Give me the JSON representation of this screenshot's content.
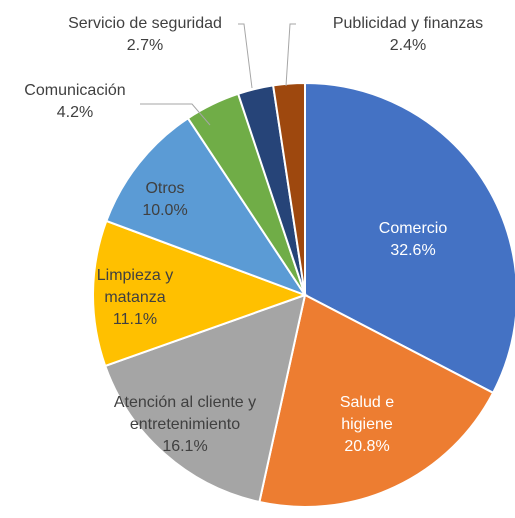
{
  "chart_data": {
    "type": "pie",
    "categories": [
      "Comercio",
      "Salud e higiene",
      "Atención al cliente y entretenimiento",
      "Limpieza y matanza",
      "Otros",
      "Comunicación",
      "Servicio de seguridad",
      "Publicidad y finanzas"
    ],
    "values": [
      32.6,
      20.8,
      16.1,
      11.1,
      10.0,
      4.2,
      2.7,
      2.4
    ],
    "value_labels": [
      "32.6%",
      "20.8%",
      "16.1%",
      "11.1%",
      "10.0%",
      "4.2%",
      "2.7%",
      "2.4%"
    ],
    "colors": [
      "#4472c4",
      "#ed7d31",
      "#a5a5a5",
      "#ffc000",
      "#5b9bd5",
      "#70ad47",
      "#264478",
      "#9e480e"
    ]
  }
}
